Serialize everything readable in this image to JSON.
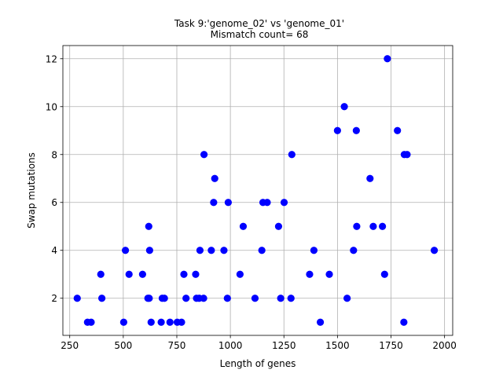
{
  "chart_data": {
    "type": "scatter",
    "title": "Task 9:'genome_02' vs 'genome_01'",
    "subtitle": "Mismatch count= 68",
    "xlabel": "Length of genes",
    "ylabel": "Swap mutations",
    "xlim": [
      218,
      2038
    ],
    "ylim": [
      0.45,
      12.55
    ],
    "xticks": [
      250,
      500,
      750,
      1000,
      1250,
      1500,
      1750,
      2000
    ],
    "yticks": [
      2,
      4,
      6,
      8,
      10,
      12
    ],
    "grid": true,
    "color": "#0000ff",
    "points": [
      {
        "x": 285,
        "y": 2
      },
      {
        "x": 333,
        "y": 1
      },
      {
        "x": 350,
        "y": 1
      },
      {
        "x": 395,
        "y": 3
      },
      {
        "x": 400,
        "y": 2
      },
      {
        "x": 502,
        "y": 1
      },
      {
        "x": 510,
        "y": 4
      },
      {
        "x": 527,
        "y": 3
      },
      {
        "x": 590,
        "y": 3
      },
      {
        "x": 615,
        "y": 2
      },
      {
        "x": 619,
        "y": 5
      },
      {
        "x": 621,
        "y": 2
      },
      {
        "x": 623,
        "y": 4
      },
      {
        "x": 630,
        "y": 1
      },
      {
        "x": 677,
        "y": 1
      },
      {
        "x": 682,
        "y": 2
      },
      {
        "x": 692,
        "y": 2
      },
      {
        "x": 718,
        "y": 1
      },
      {
        "x": 752,
        "y": 1
      },
      {
        "x": 772,
        "y": 1
      },
      {
        "x": 783,
        "y": 3
      },
      {
        "x": 793,
        "y": 2
      },
      {
        "x": 838,
        "y": 3
      },
      {
        "x": 842,
        "y": 2
      },
      {
        "x": 854,
        "y": 2
      },
      {
        "x": 858,
        "y": 4
      },
      {
        "x": 875,
        "y": 2
      },
      {
        "x": 877,
        "y": 8
      },
      {
        "x": 911,
        "y": 4
      },
      {
        "x": 922,
        "y": 6
      },
      {
        "x": 927,
        "y": 7
      },
      {
        "x": 970,
        "y": 4
      },
      {
        "x": 986,
        "y": 2
      },
      {
        "x": 990,
        "y": 6
      },
      {
        "x": 1045,
        "y": 3
      },
      {
        "x": 1060,
        "y": 5
      },
      {
        "x": 1115,
        "y": 2
      },
      {
        "x": 1147,
        "y": 4
      },
      {
        "x": 1152,
        "y": 6
      },
      {
        "x": 1172,
        "y": 6
      },
      {
        "x": 1225,
        "y": 5
      },
      {
        "x": 1235,
        "y": 2
      },
      {
        "x": 1251,
        "y": 6
      },
      {
        "x": 1283,
        "y": 2
      },
      {
        "x": 1287,
        "y": 8
      },
      {
        "x": 1370,
        "y": 3
      },
      {
        "x": 1390,
        "y": 4
      },
      {
        "x": 1420,
        "y": 1
      },
      {
        "x": 1462,
        "y": 3
      },
      {
        "x": 1500,
        "y": 9
      },
      {
        "x": 1532,
        "y": 10
      },
      {
        "x": 1545,
        "y": 2
      },
      {
        "x": 1575,
        "y": 4
      },
      {
        "x": 1588,
        "y": 9
      },
      {
        "x": 1590,
        "y": 5
      },
      {
        "x": 1652,
        "y": 7
      },
      {
        "x": 1667,
        "y": 5
      },
      {
        "x": 1710,
        "y": 5
      },
      {
        "x": 1720,
        "y": 3
      },
      {
        "x": 1733,
        "y": 12
      },
      {
        "x": 1780,
        "y": 9
      },
      {
        "x": 1810,
        "y": 1
      },
      {
        "x": 1812,
        "y": 8
      },
      {
        "x": 1825,
        "y": 8
      },
      {
        "x": 1952,
        "y": 4
      }
    ]
  }
}
